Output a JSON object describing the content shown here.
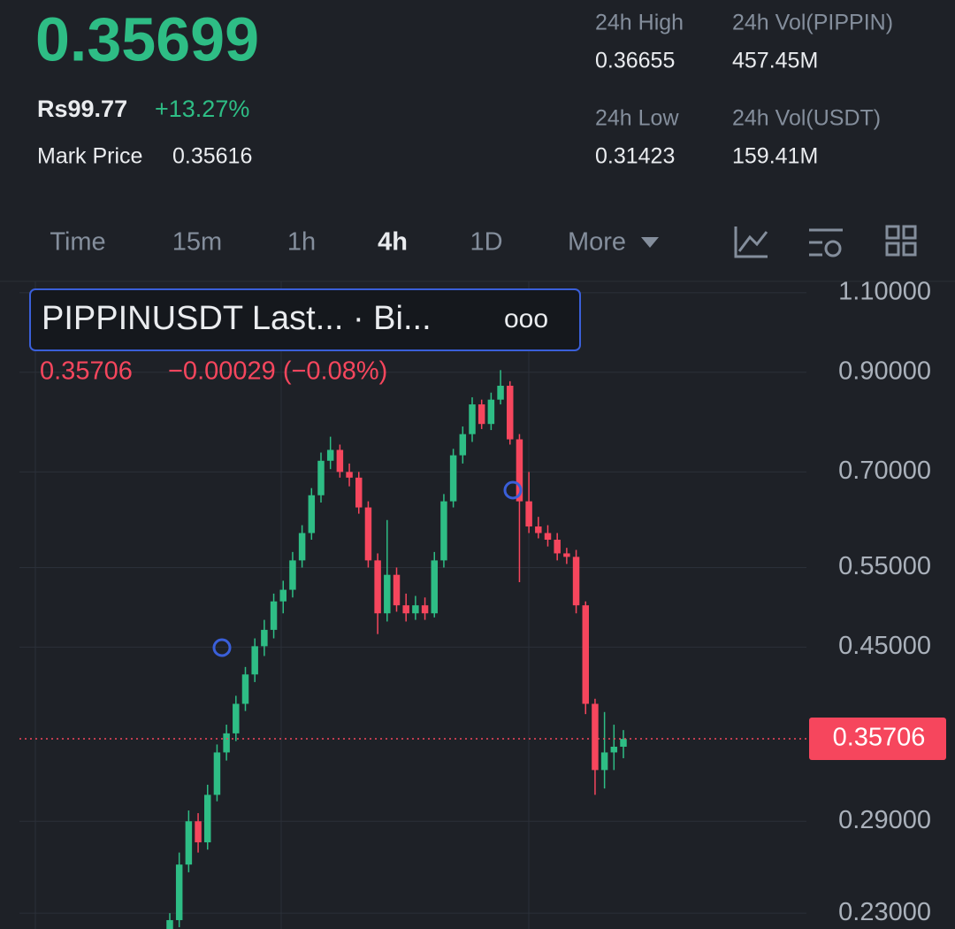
{
  "header": {
    "price": "0.35699",
    "fiat": "Rs99.77",
    "change": "+13.27%",
    "mark_label": "Mark Price",
    "mark_value": "0.35616",
    "stats": [
      {
        "label": "24h High",
        "value": "0.36655"
      },
      {
        "label": "24h Vol(PIPPIN)",
        "value": "457.45M"
      },
      {
        "label": "24h Low",
        "value": "0.31423"
      },
      {
        "label": "24h Vol(USDT)",
        "value": "159.41M"
      }
    ]
  },
  "tabs": {
    "items": [
      "Time",
      "15m",
      "1h",
      "4h",
      "1D",
      "More"
    ],
    "active": 3
  },
  "chart_data": {
    "type": "candlestick",
    "legend_title": "PIPPINUSDT Last... · Bi...",
    "legend_more": "ooo",
    "legend_values": {
      "price": "0.35706",
      "change": "−0.00029 (−0.08%)"
    },
    "last_price": {
      "value": 0.35706,
      "label": "0.35706"
    },
    "log_scale": true,
    "grid": true,
    "up_color": "#2ebd85",
    "down_color": "#f6465d",
    "ylim": [
      0.221,
      1.127
    ],
    "yticks": [
      {
        "value": 1.1,
        "label": "1.10000"
      },
      {
        "value": 0.9,
        "label": "0.90000"
      },
      {
        "value": 0.7,
        "label": "0.70000"
      },
      {
        "value": 0.55,
        "label": "0.55000"
      },
      {
        "value": 0.45,
        "label": "0.45000"
      },
      {
        "value": 0.29,
        "label": "0.29000"
      },
      {
        "value": 0.23,
        "label": "0.23000"
      }
    ],
    "open": [
      0.22,
      0.226,
      0.26,
      0.29,
      0.275,
      0.31,
      0.345,
      0.362,
      0.39,
      0.42,
      0.451,
      0.47,
      0.505,
      0.52,
      0.56,
      0.6,
      0.66,
      0.72,
      0.74,
      0.7,
      0.69,
      0.64,
      0.56,
      0.49,
      0.54,
      0.5,
      0.49,
      0.5,
      0.49,
      0.56,
      0.65,
      0.73,
      0.77,
      0.83,
      0.79,
      0.84,
      0.87,
      0.76,
      0.65,
      0.61,
      0.6,
      0.59,
      0.57,
      0.565,
      0.5,
      0.39,
      0.33,
      0.345,
      0.35
    ],
    "high": [
      0.23,
      0.268,
      0.298,
      0.296,
      0.318,
      0.352,
      0.37,
      0.398,
      0.428,
      0.46,
      0.482,
      0.515,
      0.532,
      0.572,
      0.612,
      0.672,
      0.735,
      0.765,
      0.75,
      0.715,
      0.7,
      0.65,
      0.57,
      0.62,
      0.55,
      0.515,
      0.512,
      0.51,
      0.572,
      0.662,
      0.742,
      0.785,
      0.845,
      0.84,
      0.855,
      0.905,
      0.88,
      0.77,
      0.7,
      0.625,
      0.612,
      0.6,
      0.578,
      0.575,
      0.505,
      0.395,
      0.382,
      0.37,
      0.365
    ],
    "low": [
      0.215,
      0.222,
      0.255,
      0.268,
      0.27,
      0.305,
      0.338,
      0.355,
      0.383,
      0.412,
      0.44,
      0.46,
      0.49,
      0.51,
      0.55,
      0.59,
      0.648,
      0.705,
      0.69,
      0.675,
      0.63,
      0.55,
      0.465,
      0.48,
      0.492,
      0.48,
      0.482,
      0.482,
      0.485,
      0.55,
      0.64,
      0.715,
      0.755,
      0.78,
      0.778,
      0.83,
      0.75,
      0.53,
      0.6,
      0.592,
      0.58,
      0.56,
      0.555,
      0.49,
      0.38,
      0.31,
      0.315,
      0.33,
      0.34
    ],
    "close": [
      0.226,
      0.26,
      0.29,
      0.275,
      0.31,
      0.345,
      0.362,
      0.39,
      0.42,
      0.451,
      0.47,
      0.505,
      0.52,
      0.56,
      0.6,
      0.66,
      0.72,
      0.74,
      0.7,
      0.69,
      0.64,
      0.56,
      0.49,
      0.54,
      0.5,
      0.49,
      0.5,
      0.49,
      0.56,
      0.65,
      0.73,
      0.77,
      0.83,
      0.79,
      0.84,
      0.87,
      0.76,
      0.65,
      0.61,
      0.6,
      0.59,
      0.57,
      0.565,
      0.5,
      0.39,
      0.33,
      0.345,
      0.35,
      0.357
    ]
  }
}
